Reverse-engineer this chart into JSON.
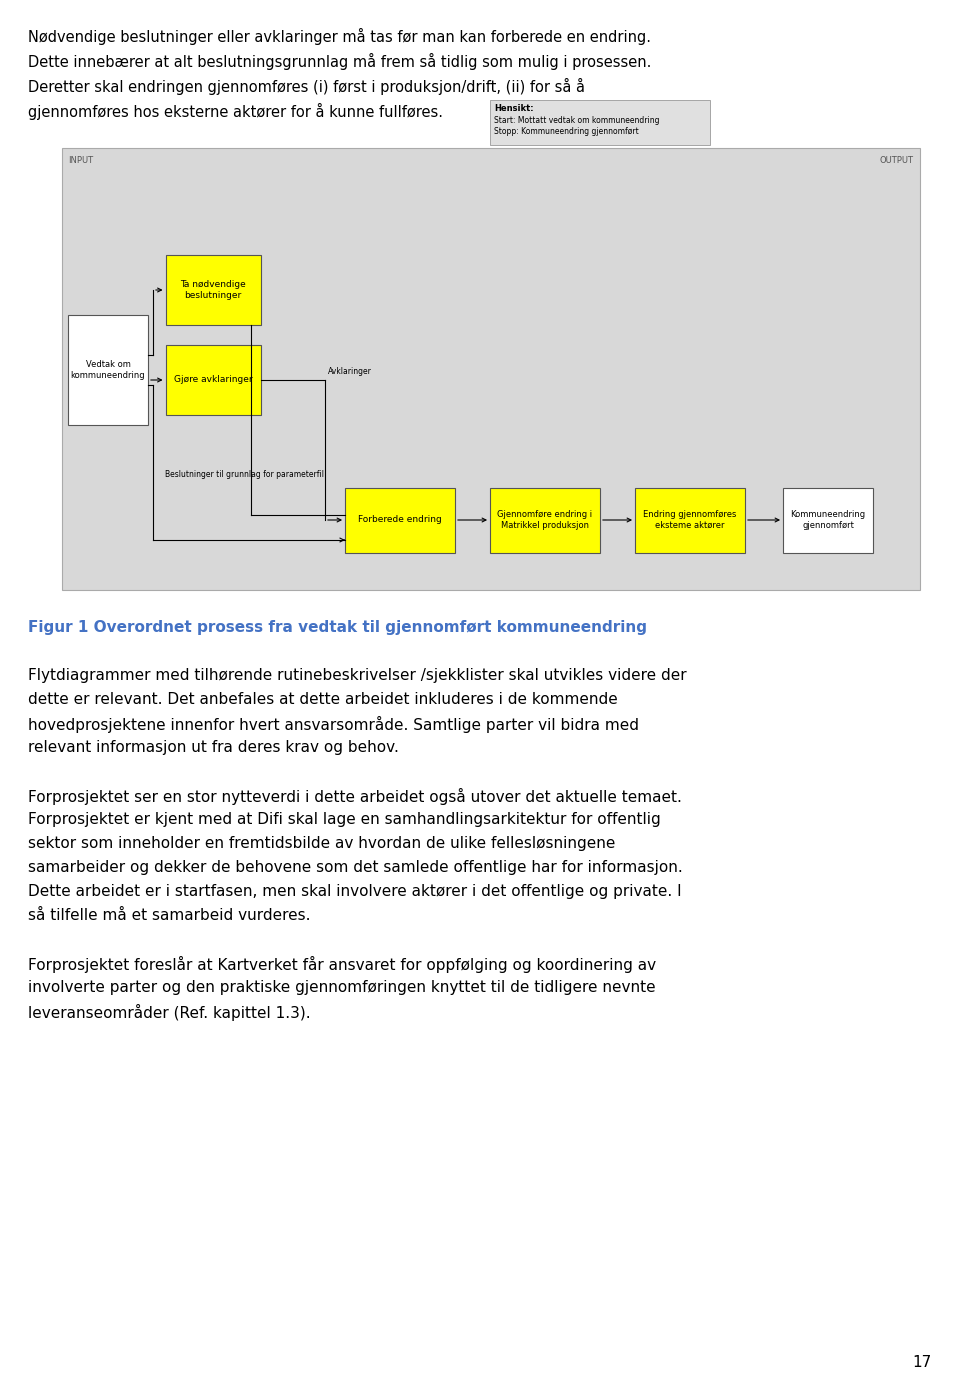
{
  "page_bg": "#ffffff",
  "diagram_bg": "#d8d8d8",
  "box_yellow": "#ffff00",
  "box_white": "#ffffff",
  "arrow_color": "#000000",
  "text_color": "#000000",
  "blue_text": "#4472c4",
  "top_texts": [
    "Nødvendige beslutninger eller avklaringer må tas før man kan forberede en endring.",
    "Dette innebærer at alt beslutningsgrunnlag må frem så tidlig som mulig i prosessen.",
    "Deretter skal endringen gjennomføres (i) først i produksjon/drift, (ii) for så å",
    "gjennomføres hos eksterne aktører for å kunne fullføres."
  ],
  "hensikt_label": "Hensikt:",
  "hensikt_start": "Start: Mottatt vedtak om kommuneendring",
  "hensikt_stopp": "Stopp: Kommuneendring gjennomført",
  "input_label": "INPUT",
  "output_label": "OUTPUT",
  "caption": "Figur 1 Overordnet prosess fra vedtak til gjennomført kommuneendring",
  "body_para1": [
    "Flytdiagrammer med tilhørende rutinebeskrivelser /sjekklister skal utvikles videre der dette er relevant. Det anbefales at dette arbeidet inkluderes i de kommende",
    "hovedprosjektene innenfor hvert ansvarsområde. Samtlige parter vil bidra med",
    "relevant informasjon ut fra deres krav og behov."
  ],
  "body_para2": [
    "Forprosjektet ser en stor nytteverdi i dette arbeidet også utover det aktuelle temaet.",
    "Forprosjektet er kjent med at Difi skal lage en samhandlingsarkitektur for offentlig",
    "sektor som inneholder en fremtidsbilde av hvordan de ulike fellesløsningene",
    "samarbeider og dekker de behovene som det samlede offentlige har for informasjon.",
    "Dette arbeidet er i startfasen, men skal involvere aktører i det offentlige og private. I",
    "så tilfelle må et samarbeid vurderes."
  ],
  "body_para3": [
    "Forprosjektet foreslår at Kartverket får ansvaret for oppfølging og koordinering av",
    "involverte parter og den praktiske gjennomføringen knyttet til de tidligere nevnte",
    "leveranseområder (Ref. kapittel 1.3)."
  ],
  "page_number": "17"
}
